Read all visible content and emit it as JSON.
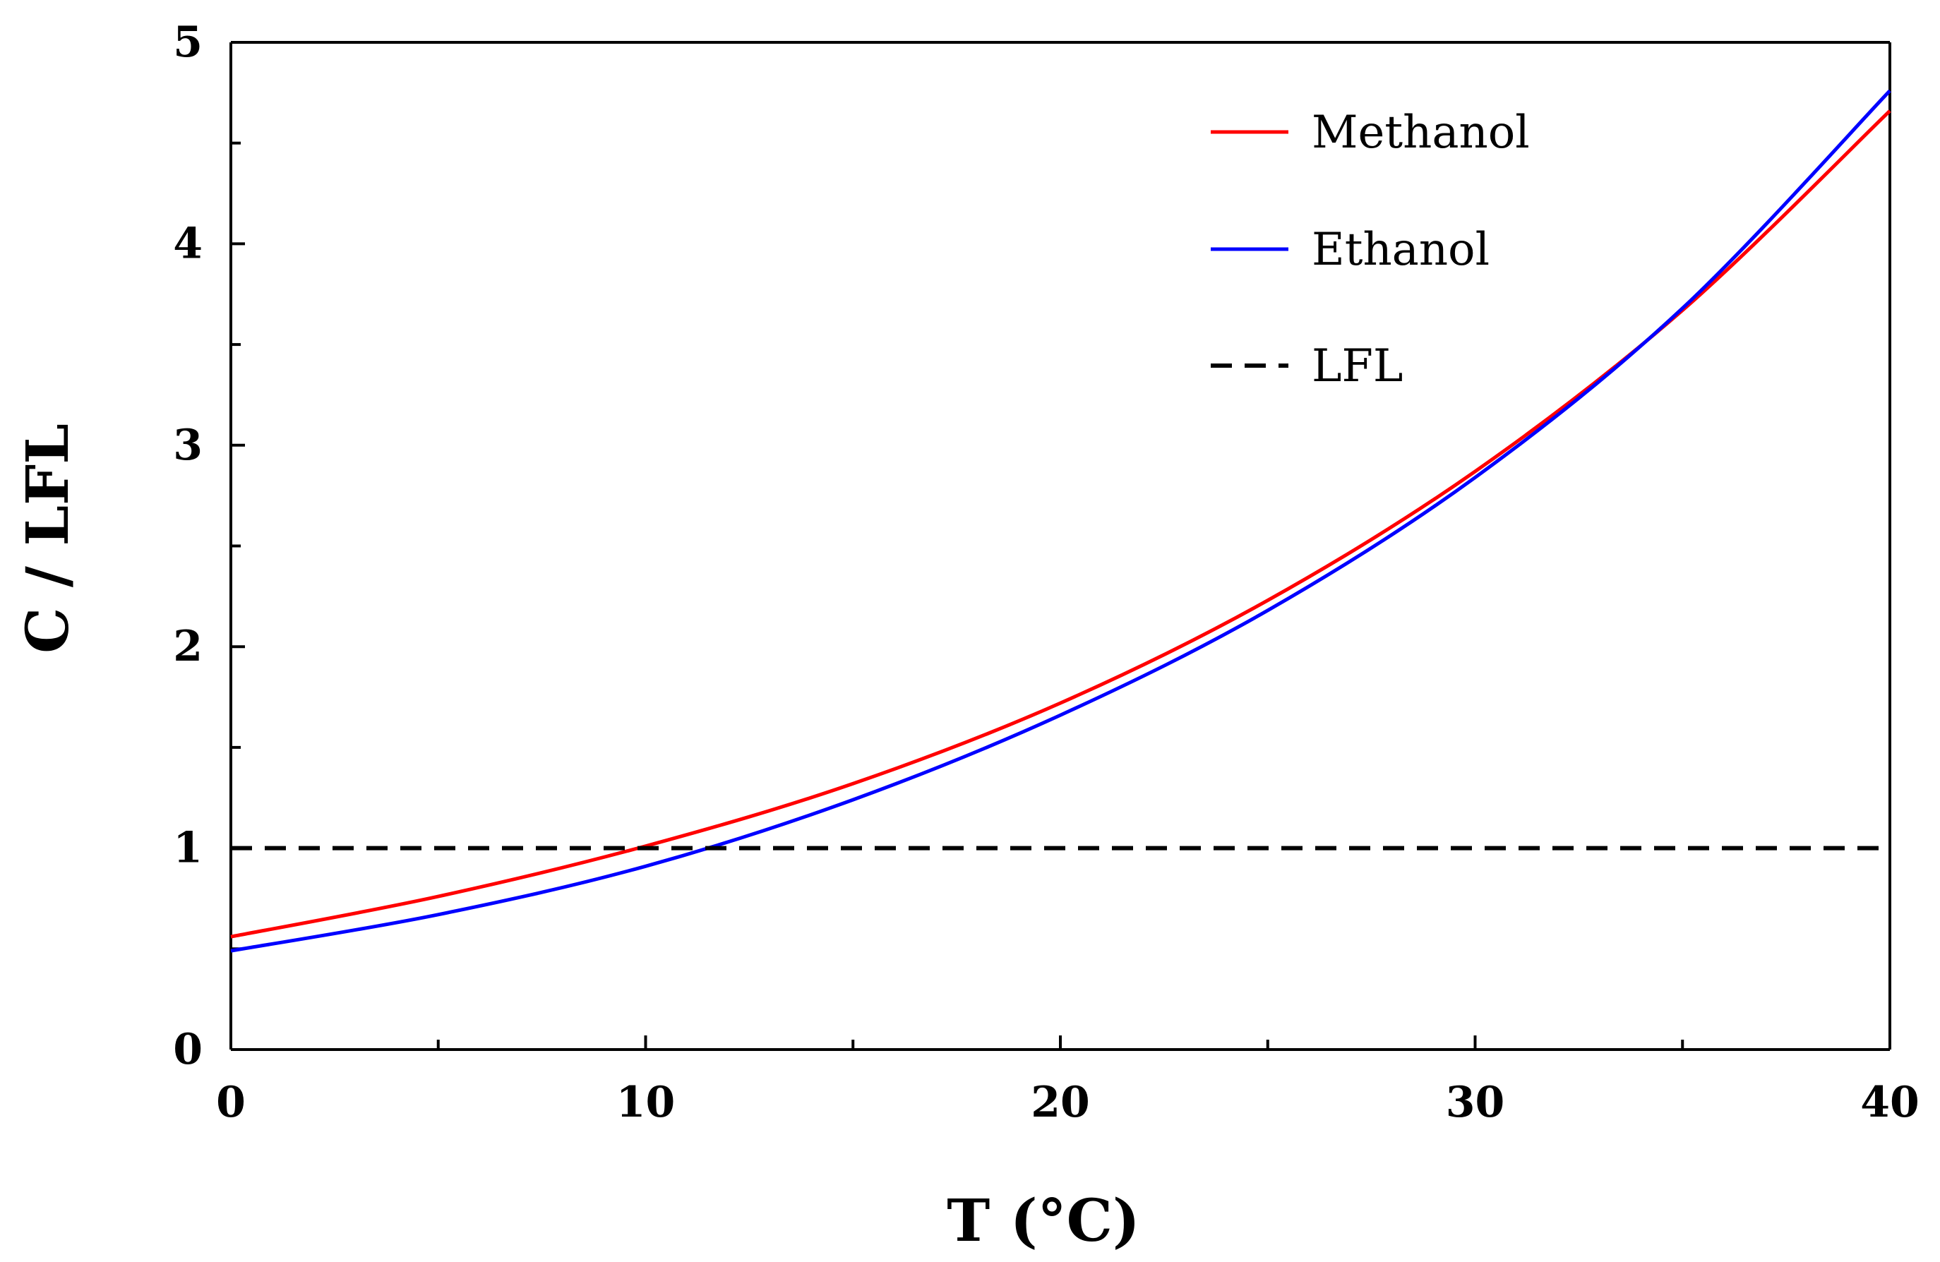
{
  "chart_data": {
    "type": "line",
    "title": "",
    "xlabel": "T (°C)",
    "ylabel": "C / LFL",
    "xlim": [
      0,
      40
    ],
    "ylim": [
      0,
      5
    ],
    "xticks": [
      0,
      10,
      20,
      30,
      40
    ],
    "yticks": [
      0,
      1,
      2,
      3,
      4,
      5
    ],
    "x_tick_labels": [
      "0",
      "10",
      "20",
      "30",
      "40"
    ],
    "y_tick_labels": [
      "0",
      "1",
      "2",
      "3",
      "4",
      "5"
    ],
    "grid": false,
    "legend_position": "top-right",
    "series": [
      {
        "name": "Methanol",
        "color": "#ff0000",
        "style": "solid",
        "x": [
          0,
          5,
          10,
          15,
          20,
          25,
          30,
          35,
          40
        ],
        "values": [
          0.56,
          0.76,
          1.01,
          1.32,
          1.72,
          2.23,
          2.87,
          3.67,
          4.66
        ]
      },
      {
        "name": "Ethanol",
        "color": "#0000ff",
        "style": "solid",
        "x": [
          0,
          5,
          10,
          15,
          20,
          25,
          30,
          35,
          40
        ],
        "values": [
          0.49,
          0.67,
          0.91,
          1.24,
          1.66,
          2.18,
          2.84,
          3.68,
          4.76
        ]
      },
      {
        "name": "LFL",
        "color": "#000000",
        "style": "dashed",
        "x": [
          0,
          40
        ],
        "values": [
          1,
          1
        ]
      }
    ]
  }
}
